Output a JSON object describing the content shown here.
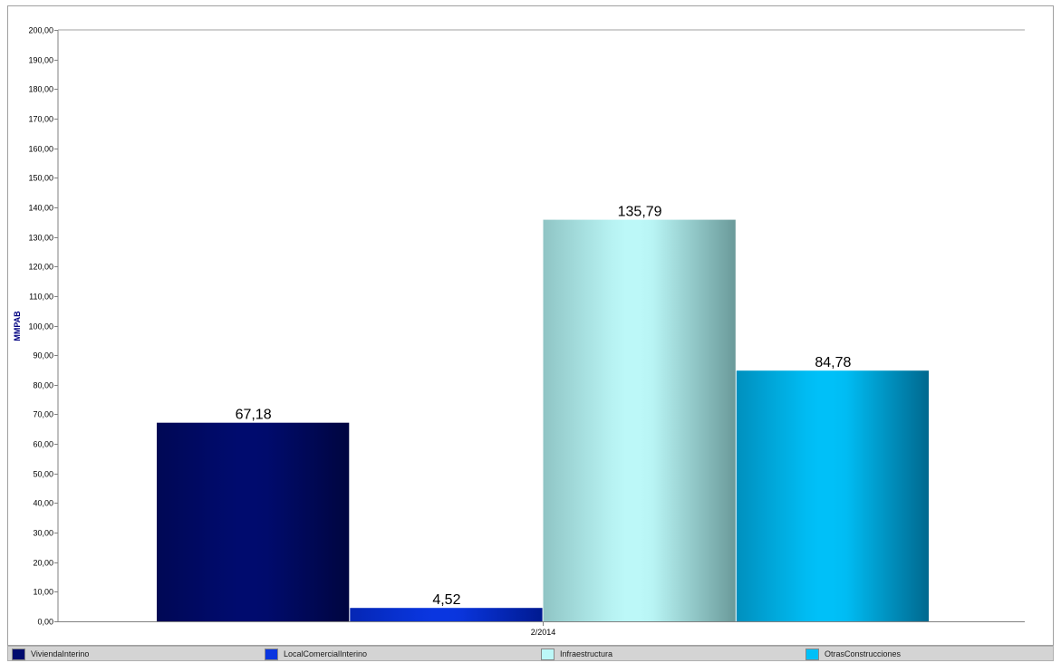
{
  "chart_data": {
    "type": "bar",
    "categories": [
      "2/2014"
    ],
    "ylabel": "MMPAB",
    "ylim": [
      0,
      200
    ],
    "ytick_step": 10,
    "ytick_labels": [
      "0,00",
      "10,00",
      "20,00",
      "30,00",
      "40,00",
      "50,00",
      "60,00",
      "70,00",
      "80,00",
      "90,00",
      "100,00",
      "110,00",
      "120,00",
      "130,00",
      "140,00",
      "150,00",
      "160,00",
      "170,00",
      "180,00",
      "190,00",
      "200,00"
    ],
    "grid": false,
    "legend_position": "bottom",
    "series": [
      {
        "name": "ViviendaInterino",
        "values": [
          67.18
        ],
        "label": "67,18",
        "color": "#000b6e",
        "edge": "#000540"
      },
      {
        "name": "LocalComercialInterino",
        "values": [
          4.52
        ],
        "label": "4,52",
        "color": "#0a36e0",
        "edge": "#001a90"
      },
      {
        "name": "Infraestructura",
        "values": [
          135.79
        ],
        "label": "135,79",
        "color": "#bcf8f8",
        "edge": "#6a9a9a"
      },
      {
        "name": "OtrasConstrucciones",
        "values": [
          84.78
        ],
        "label": "84,78",
        "color": "#00c0f8",
        "edge": "#00688e"
      }
    ]
  }
}
